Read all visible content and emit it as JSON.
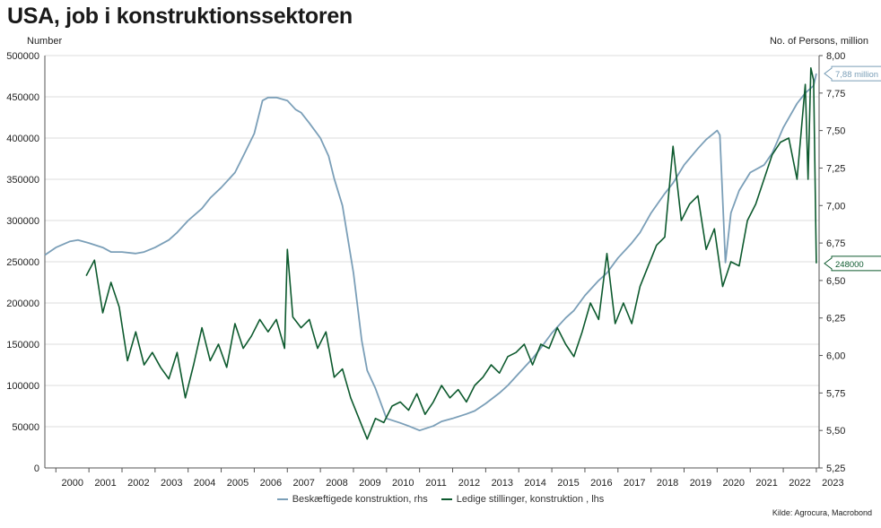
{
  "title": "USA, job i konstruktionssektoren",
  "left_unit": "Number",
  "right_unit": "No. of Persons, million",
  "source": "Kilde: Agrocura, Macrobond",
  "colors": {
    "employment": "#7b9fb8",
    "openings": "#0d5a2e",
    "grid": "#dcdcdc"
  },
  "chart_data": {
    "type": "line",
    "x_axis": {
      "type": "date",
      "range": [
        "1999-09",
        "2023-02"
      ],
      "tick_labels": [
        "2000",
        "2001",
        "2002",
        "2003",
        "2004",
        "2005",
        "2006",
        "2007",
        "2008",
        "2009",
        "2010",
        "2011",
        "2012",
        "2013",
        "2014",
        "2015",
        "2016",
        "2017",
        "2018",
        "2019",
        "2020",
        "2021",
        "2022",
        "2023"
      ]
    },
    "y_left": {
      "range": [
        0,
        500000
      ],
      "ticks": [
        0,
        50000,
        100000,
        150000,
        200000,
        250000,
        300000,
        350000,
        400000,
        450000,
        500000
      ],
      "tick_labels": [
        "0",
        "50000",
        "100000",
        "150000",
        "200000",
        "250000",
        "300000",
        "350000",
        "400000",
        "450000",
        "500000"
      ]
    },
    "y_right": {
      "range": [
        5.25,
        8.0
      ],
      "ticks": [
        5.25,
        5.5,
        5.75,
        6.0,
        6.25,
        6.5,
        6.75,
        7.0,
        7.25,
        7.5,
        7.75,
        8.0
      ],
      "tick_labels": [
        "5,25",
        "5,50",
        "5,75",
        "6,00",
        "6,25",
        "6,50",
        "6,75",
        "7,00",
        "7,25",
        "7,50",
        "7,75",
        "8,00"
      ]
    },
    "grid": true,
    "legend_position": "bottom",
    "series": [
      {
        "name": "Beskæftigede konstruktion, rhs",
        "axis": "right",
        "end_label": "7,88 million",
        "points": [
          [
            "1999-09",
            6.67
          ],
          [
            "2000-01",
            6.72
          ],
          [
            "2000-06",
            6.76
          ],
          [
            "2000-09",
            6.77
          ],
          [
            "2001-01",
            6.75
          ],
          [
            "2001-06",
            6.72
          ],
          [
            "2001-09",
            6.69
          ],
          [
            "2002-01",
            6.69
          ],
          [
            "2002-06",
            6.68
          ],
          [
            "2002-09",
            6.69
          ],
          [
            "2003-01",
            6.72
          ],
          [
            "2003-06",
            6.77
          ],
          [
            "2003-09",
            6.82
          ],
          [
            "2004-01",
            6.9
          ],
          [
            "2004-06",
            6.98
          ],
          [
            "2004-09",
            7.05
          ],
          [
            "2005-01",
            7.12
          ],
          [
            "2005-06",
            7.22
          ],
          [
            "2005-09",
            7.33
          ],
          [
            "2006-01",
            7.48
          ],
          [
            "2006-04",
            7.7
          ],
          [
            "2006-06",
            7.72
          ],
          [
            "2006-09",
            7.72
          ],
          [
            "2007-01",
            7.7
          ],
          [
            "2007-04",
            7.64
          ],
          [
            "2007-06",
            7.62
          ],
          [
            "2007-09",
            7.55
          ],
          [
            "2008-01",
            7.45
          ],
          [
            "2008-04",
            7.33
          ],
          [
            "2008-06",
            7.18
          ],
          [
            "2008-09",
            7.0
          ],
          [
            "2009-01",
            6.55
          ],
          [
            "2009-04",
            6.1
          ],
          [
            "2009-06",
            5.9
          ],
          [
            "2009-09",
            5.78
          ],
          [
            "2010-01",
            5.58
          ],
          [
            "2010-06",
            5.55
          ],
          [
            "2010-09",
            5.53
          ],
          [
            "2011-01",
            5.5
          ],
          [
            "2011-06",
            5.53
          ],
          [
            "2011-09",
            5.56
          ],
          [
            "2012-01",
            5.58
          ],
          [
            "2012-06",
            5.61
          ],
          [
            "2012-09",
            5.63
          ],
          [
            "2013-01",
            5.68
          ],
          [
            "2013-06",
            5.75
          ],
          [
            "2013-09",
            5.8
          ],
          [
            "2014-01",
            5.88
          ],
          [
            "2014-06",
            5.98
          ],
          [
            "2014-09",
            6.05
          ],
          [
            "2015-01",
            6.15
          ],
          [
            "2015-06",
            6.25
          ],
          [
            "2015-09",
            6.3
          ],
          [
            "2016-01",
            6.4
          ],
          [
            "2016-06",
            6.5
          ],
          [
            "2016-09",
            6.55
          ],
          [
            "2017-01",
            6.65
          ],
          [
            "2017-06",
            6.75
          ],
          [
            "2017-09",
            6.82
          ],
          [
            "2018-01",
            6.95
          ],
          [
            "2018-06",
            7.08
          ],
          [
            "2018-09",
            7.15
          ],
          [
            "2019-01",
            7.27
          ],
          [
            "2019-06",
            7.38
          ],
          [
            "2019-09",
            7.44
          ],
          [
            "2020-01",
            7.5
          ],
          [
            "2020-02",
            7.47
          ],
          [
            "2020-04",
            6.62
          ],
          [
            "2020-06",
            6.95
          ],
          [
            "2020-09",
            7.1
          ],
          [
            "2021-01",
            7.22
          ],
          [
            "2021-06",
            7.27
          ],
          [
            "2021-09",
            7.35
          ],
          [
            "2022-01",
            7.52
          ],
          [
            "2022-06",
            7.68
          ],
          [
            "2022-09",
            7.75
          ],
          [
            "2022-12",
            7.8
          ],
          [
            "2023-01",
            7.88
          ]
        ]
      },
      {
        "name": "Ledige stillinger, konstruktion , lhs",
        "axis": "left",
        "end_label": "248000",
        "points": [
          [
            "2000-12",
            233000
          ],
          [
            "2001-03",
            252000
          ],
          [
            "2001-06",
            188000
          ],
          [
            "2001-09",
            225000
          ],
          [
            "2001-12",
            195000
          ],
          [
            "2002-03",
            130000
          ],
          [
            "2002-06",
            165000
          ],
          [
            "2002-09",
            125000
          ],
          [
            "2002-12",
            140000
          ],
          [
            "2003-03",
            122000
          ],
          [
            "2003-06",
            108000
          ],
          [
            "2003-09",
            140000
          ],
          [
            "2003-12",
            85000
          ],
          [
            "2004-03",
            125000
          ],
          [
            "2004-06",
            170000
          ],
          [
            "2004-09",
            130000
          ],
          [
            "2004-12",
            150000
          ],
          [
            "2005-03",
            122000
          ],
          [
            "2005-06",
            175000
          ],
          [
            "2005-09",
            145000
          ],
          [
            "2005-12",
            160000
          ],
          [
            "2006-03",
            180000
          ],
          [
            "2006-06",
            165000
          ],
          [
            "2006-09",
            180000
          ],
          [
            "2006-12",
            145000
          ],
          [
            "2007-01",
            265000
          ],
          [
            "2007-03",
            183000
          ],
          [
            "2007-06",
            170000
          ],
          [
            "2007-09",
            180000
          ],
          [
            "2007-12",
            145000
          ],
          [
            "2008-03",
            165000
          ],
          [
            "2008-06",
            110000
          ],
          [
            "2008-09",
            120000
          ],
          [
            "2008-12",
            85000
          ],
          [
            "2009-03",
            60000
          ],
          [
            "2009-06",
            35000
          ],
          [
            "2009-09",
            60000
          ],
          [
            "2009-12",
            55000
          ],
          [
            "2010-03",
            75000
          ],
          [
            "2010-06",
            80000
          ],
          [
            "2010-09",
            70000
          ],
          [
            "2010-12",
            90000
          ],
          [
            "2011-03",
            65000
          ],
          [
            "2011-06",
            80000
          ],
          [
            "2011-09",
            100000
          ],
          [
            "2011-12",
            85000
          ],
          [
            "2012-03",
            95000
          ],
          [
            "2012-06",
            80000
          ],
          [
            "2012-09",
            100000
          ],
          [
            "2012-12",
            110000
          ],
          [
            "2013-03",
            125000
          ],
          [
            "2013-06",
            115000
          ],
          [
            "2013-09",
            135000
          ],
          [
            "2013-12",
            140000
          ],
          [
            "2014-03",
            150000
          ],
          [
            "2014-06",
            125000
          ],
          [
            "2014-09",
            150000
          ],
          [
            "2014-12",
            145000
          ],
          [
            "2015-03",
            170000
          ],
          [
            "2015-06",
            150000
          ],
          [
            "2015-09",
            135000
          ],
          [
            "2015-12",
            165000
          ],
          [
            "2016-03",
            200000
          ],
          [
            "2016-06",
            180000
          ],
          [
            "2016-09",
            260000
          ],
          [
            "2016-12",
            175000
          ],
          [
            "2017-03",
            200000
          ],
          [
            "2017-06",
            175000
          ],
          [
            "2017-09",
            220000
          ],
          [
            "2017-12",
            245000
          ],
          [
            "2018-03",
            270000
          ],
          [
            "2018-06",
            280000
          ],
          [
            "2018-09",
            390000
          ],
          [
            "2018-12",
            300000
          ],
          [
            "2019-03",
            320000
          ],
          [
            "2019-06",
            330000
          ],
          [
            "2019-09",
            265000
          ],
          [
            "2019-12",
            290000
          ],
          [
            "2020-03",
            220000
          ],
          [
            "2020-06",
            250000
          ],
          [
            "2020-09",
            245000
          ],
          [
            "2020-12",
            300000
          ],
          [
            "2021-03",
            320000
          ],
          [
            "2021-06",
            350000
          ],
          [
            "2021-09",
            380000
          ],
          [
            "2021-12",
            395000
          ],
          [
            "2022-03",
            400000
          ],
          [
            "2022-06",
            350000
          ],
          [
            "2022-09",
            465000
          ],
          [
            "2022-10",
            350000
          ],
          [
            "2022-11",
            485000
          ],
          [
            "2022-12",
            470000
          ],
          [
            "2023-01",
            248000
          ]
        ]
      }
    ]
  }
}
